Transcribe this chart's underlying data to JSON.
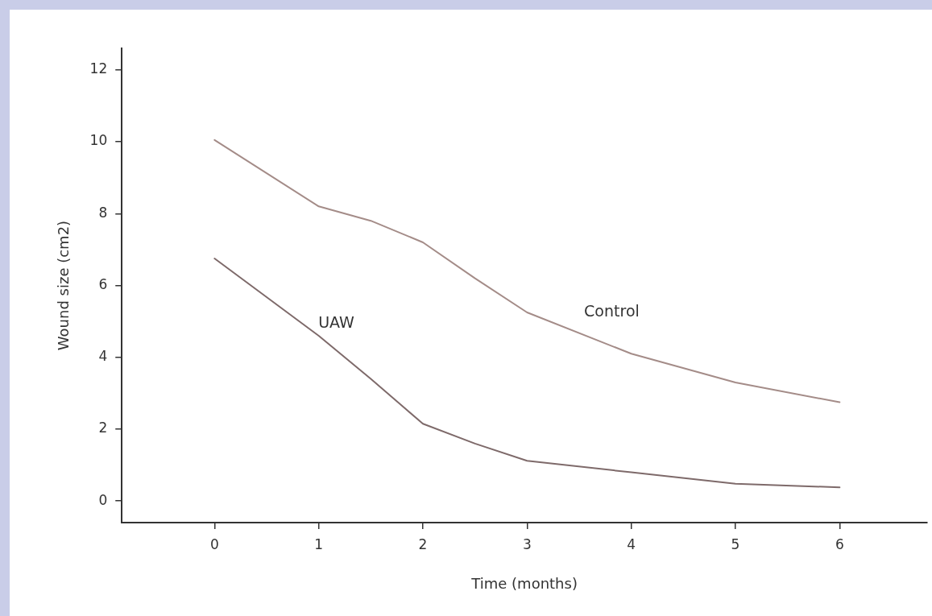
{
  "chart_data": {
    "type": "line",
    "xlabel": "Time (months)",
    "ylabel": "Wound size (cm2)",
    "x": [
      0,
      1,
      1.5,
      2,
      2.5,
      3,
      4,
      5,
      6
    ],
    "series": [
      {
        "name": "Control",
        "color": "#a48c88",
        "values": [
          10.05,
          8.2,
          7.8,
          7.2,
          6.2,
          5.25,
          4.1,
          3.3,
          2.75
        ]
      },
      {
        "name": "UAW",
        "color": "#7e6a6a",
        "values": [
          6.75,
          4.6,
          3.4,
          2.15,
          1.6,
          1.12,
          0.8,
          0.48,
          0.38
        ]
      }
    ],
    "xlim": [
      -0.89,
      6.84
    ],
    "xticks": [
      0,
      1,
      2,
      3,
      4,
      5,
      6
    ],
    "ylim": [
      -0.6,
      12.6
    ],
    "yticks": [
      0,
      2,
      4,
      6,
      8,
      10,
      12
    ],
    "grid": false,
    "legend": false,
    "marker": "none",
    "line_style": "solid"
  }
}
